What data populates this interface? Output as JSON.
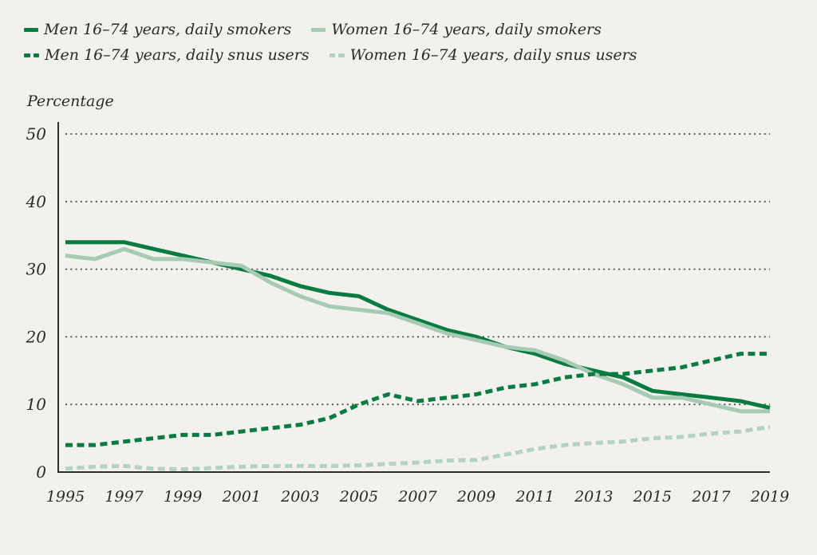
{
  "colors": {
    "background": "#f2f1ee",
    "dark_green": "#077b40",
    "light_green": "#a6cab4",
    "light_green_dashed": "#b4d2c0",
    "axis_line": "#2e2e2e",
    "gridline": "#4a4a4a",
    "text": "#2b2a28"
  },
  "chart_data": {
    "type": "line",
    "title": "",
    "xlabel": "",
    "ylabel": "Percentage",
    "ylim": [
      0,
      50
    ],
    "yticks": [
      0,
      10,
      20,
      30,
      40,
      50
    ],
    "xticks": [
      1995,
      1997,
      1999,
      2001,
      2003,
      2005,
      2007,
      2009,
      2011,
      2013,
      2015,
      2017,
      2019
    ],
    "grid": "horizontal-dotted",
    "legend_position": "top-left",
    "x": [
      1995,
      1996,
      1997,
      1998,
      1999,
      2000,
      2001,
      2002,
      2003,
      2004,
      2005,
      2006,
      2007,
      2008,
      2009,
      2010,
      2011,
      2012,
      2013,
      2014,
      2015,
      2016,
      2017,
      2018,
      2019
    ],
    "series": [
      {
        "name": "Men 16–74 years, daily smokers",
        "style": "solid",
        "color": "#077b40",
        "values": [
          34,
          34,
          34,
          33,
          32,
          31,
          30,
          29,
          27.5,
          26.5,
          26,
          24,
          22.5,
          21,
          20,
          18.5,
          17.5,
          16,
          15,
          14,
          12,
          11.5,
          11,
          10.5,
          9.5
        ]
      },
      {
        "name": "Women 16–74 years, daily smokers",
        "style": "solid",
        "color": "#a6cab4",
        "values": [
          32,
          31.5,
          33,
          31.5,
          31.5,
          31,
          30.5,
          28,
          26,
          24.5,
          24,
          23.5,
          22,
          20.5,
          19.5,
          18.5,
          18,
          16.5,
          14.5,
          13,
          11,
          11,
          10,
          9,
          9
        ]
      },
      {
        "name": "Men 16–74 years, daily snus users",
        "style": "dashed",
        "color": "#077b40",
        "values": [
          4,
          4,
          4.5,
          5,
          5.5,
          5.5,
          6,
          6.5,
          7,
          8,
          10,
          11.5,
          10.5,
          11,
          11.5,
          12.5,
          13,
          14,
          14.5,
          14.5,
          15,
          15.5,
          16.5,
          17.5,
          17.5
        ]
      },
      {
        "name": "Women 16–74 years, daily snus users",
        "style": "dashed",
        "color": "#b4d2c0",
        "values": [
          0.5,
          0.8,
          0.9,
          0.5,
          0.4,
          0.6,
          0.8,
          0.9,
          0.9,
          0.9,
          1,
          1.2,
          1.4,
          1.7,
          1.8,
          2.6,
          3.4,
          4,
          4.3,
          4.5,
          5,
          5.2,
          5.7,
          6,
          6.7
        ]
      }
    ]
  }
}
